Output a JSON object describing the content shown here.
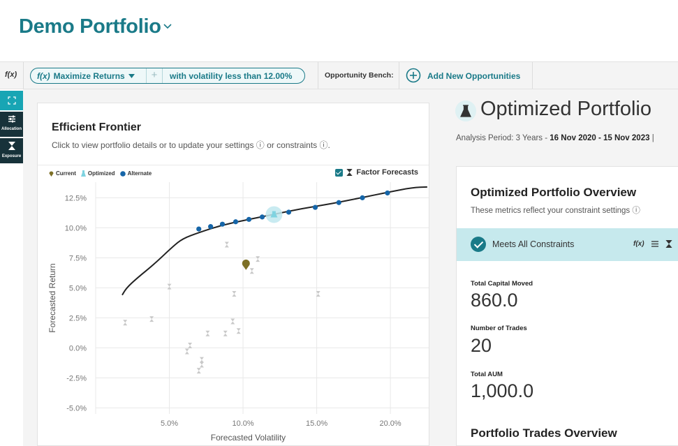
{
  "header": {
    "title": "Demo Portfolio"
  },
  "toolbar": {
    "fx_label": "f(x)",
    "objective": "Maximize Returns",
    "constraint": "with volatility less than 12.00%",
    "bench_label": "Opportunity Bench:",
    "add_label": "Add New Opportunities"
  },
  "sidebar": {
    "items": [
      {
        "label": "",
        "icon": "expand-icon"
      },
      {
        "label": "Allocation",
        "icon": "sliders-icon"
      },
      {
        "label": "Exposure",
        "icon": "hourglass-icon"
      }
    ]
  },
  "frontier": {
    "title": "Efficient Frontier",
    "subtitle": "Click to view portfolio details or to update your settings ⓘ or constraints ⓘ.",
    "legend": {
      "current": "Current",
      "optimized": "Optimized",
      "alternate": "Alternate"
    },
    "factor_label": "Factor Forecasts"
  },
  "chart_data": {
    "type": "scatter",
    "xlabel": "Forecasted Volatility",
    "ylabel": "Forecasted Return",
    "xlim": [
      0,
      22.6
    ],
    "ylim": [
      -5.5,
      13.8
    ],
    "xticks": [
      5,
      10,
      15,
      20
    ],
    "xtick_labels": [
      "5.0%",
      "10.0%",
      "15.0%",
      "20.0%"
    ],
    "yticks": [
      12.5,
      10,
      7.5,
      5,
      2.5,
      0,
      -2.5,
      -5
    ],
    "ytick_labels": [
      "12.5%",
      "10.0%",
      "7.5%",
      "5.0%",
      "2.5%",
      "0.0%",
      "-2.5%",
      "-5.0%"
    ],
    "frontier_curve": [
      [
        1.8,
        4.4
      ],
      [
        2.1,
        5.0
      ],
      [
        2.8,
        5.8
      ],
      [
        4.0,
        7.0
      ],
      [
        5.2,
        8.4
      ],
      [
        5.9,
        9.1
      ],
      [
        7.0,
        9.6
      ],
      [
        8.5,
        10.2
      ],
      [
        10.0,
        10.6
      ],
      [
        12.0,
        11.1
      ],
      [
        14.0,
        11.6
      ],
      [
        16.0,
        12.0
      ],
      [
        18.0,
        12.5
      ],
      [
        20.0,
        13.0
      ],
      [
        21.5,
        13.35
      ],
      [
        22.5,
        13.4
      ]
    ],
    "alternate": [
      [
        7.0,
        9.9
      ],
      [
        7.8,
        10.1
      ],
      [
        8.6,
        10.3
      ],
      [
        9.5,
        10.5
      ],
      [
        10.4,
        10.7
      ],
      [
        11.3,
        10.9
      ],
      [
        13.1,
        11.3
      ],
      [
        14.9,
        11.7
      ],
      [
        16.5,
        12.1
      ],
      [
        18.1,
        12.5
      ],
      [
        19.8,
        12.9
      ]
    ],
    "optimized": [
      [
        12.1,
        11.1
      ]
    ],
    "current": [
      [
        10.2,
        6.9
      ]
    ],
    "factor_forecasts": [
      [
        2.0,
        2.1
      ],
      [
        3.8,
        2.4
      ],
      [
        5.0,
        5.1
      ],
      [
        6.2,
        -0.3
      ],
      [
        6.4,
        0.2
      ],
      [
        7.0,
        -1.9
      ],
      [
        7.2,
        -1.4
      ],
      [
        7.2,
        -1.0
      ],
      [
        7.6,
        1.2
      ],
      [
        8.8,
        1.2
      ],
      [
        8.9,
        8.6
      ],
      [
        9.3,
        2.2
      ],
      [
        9.4,
        4.5
      ],
      [
        9.7,
        1.4
      ],
      [
        10.6,
        6.4
      ],
      [
        11.0,
        7.4
      ],
      [
        15.1,
        4.5
      ]
    ]
  },
  "optimized": {
    "title": "Optimized Portfolio",
    "analysis_prefix": "Analysis Period:",
    "analysis_years": "3 Years -",
    "analysis_range": "16 Nov 2020 - 15 Nov 2023",
    "analysis_sep": "|",
    "overview_title": "Optimized Portfolio Overview",
    "overview_sub": "These metrics reflect your constraint settings ⓘ",
    "constraints_label": "Meets All Constraints",
    "constraint_icon_fx": "f(x)",
    "metrics": [
      {
        "label": "Total Capital Moved",
        "value": "860.0"
      },
      {
        "label": "Number of Trades",
        "value": "20"
      },
      {
        "label": "Total AUM",
        "value": "1,000.0"
      }
    ],
    "trades_title": "Portfolio Trades Overview"
  }
}
